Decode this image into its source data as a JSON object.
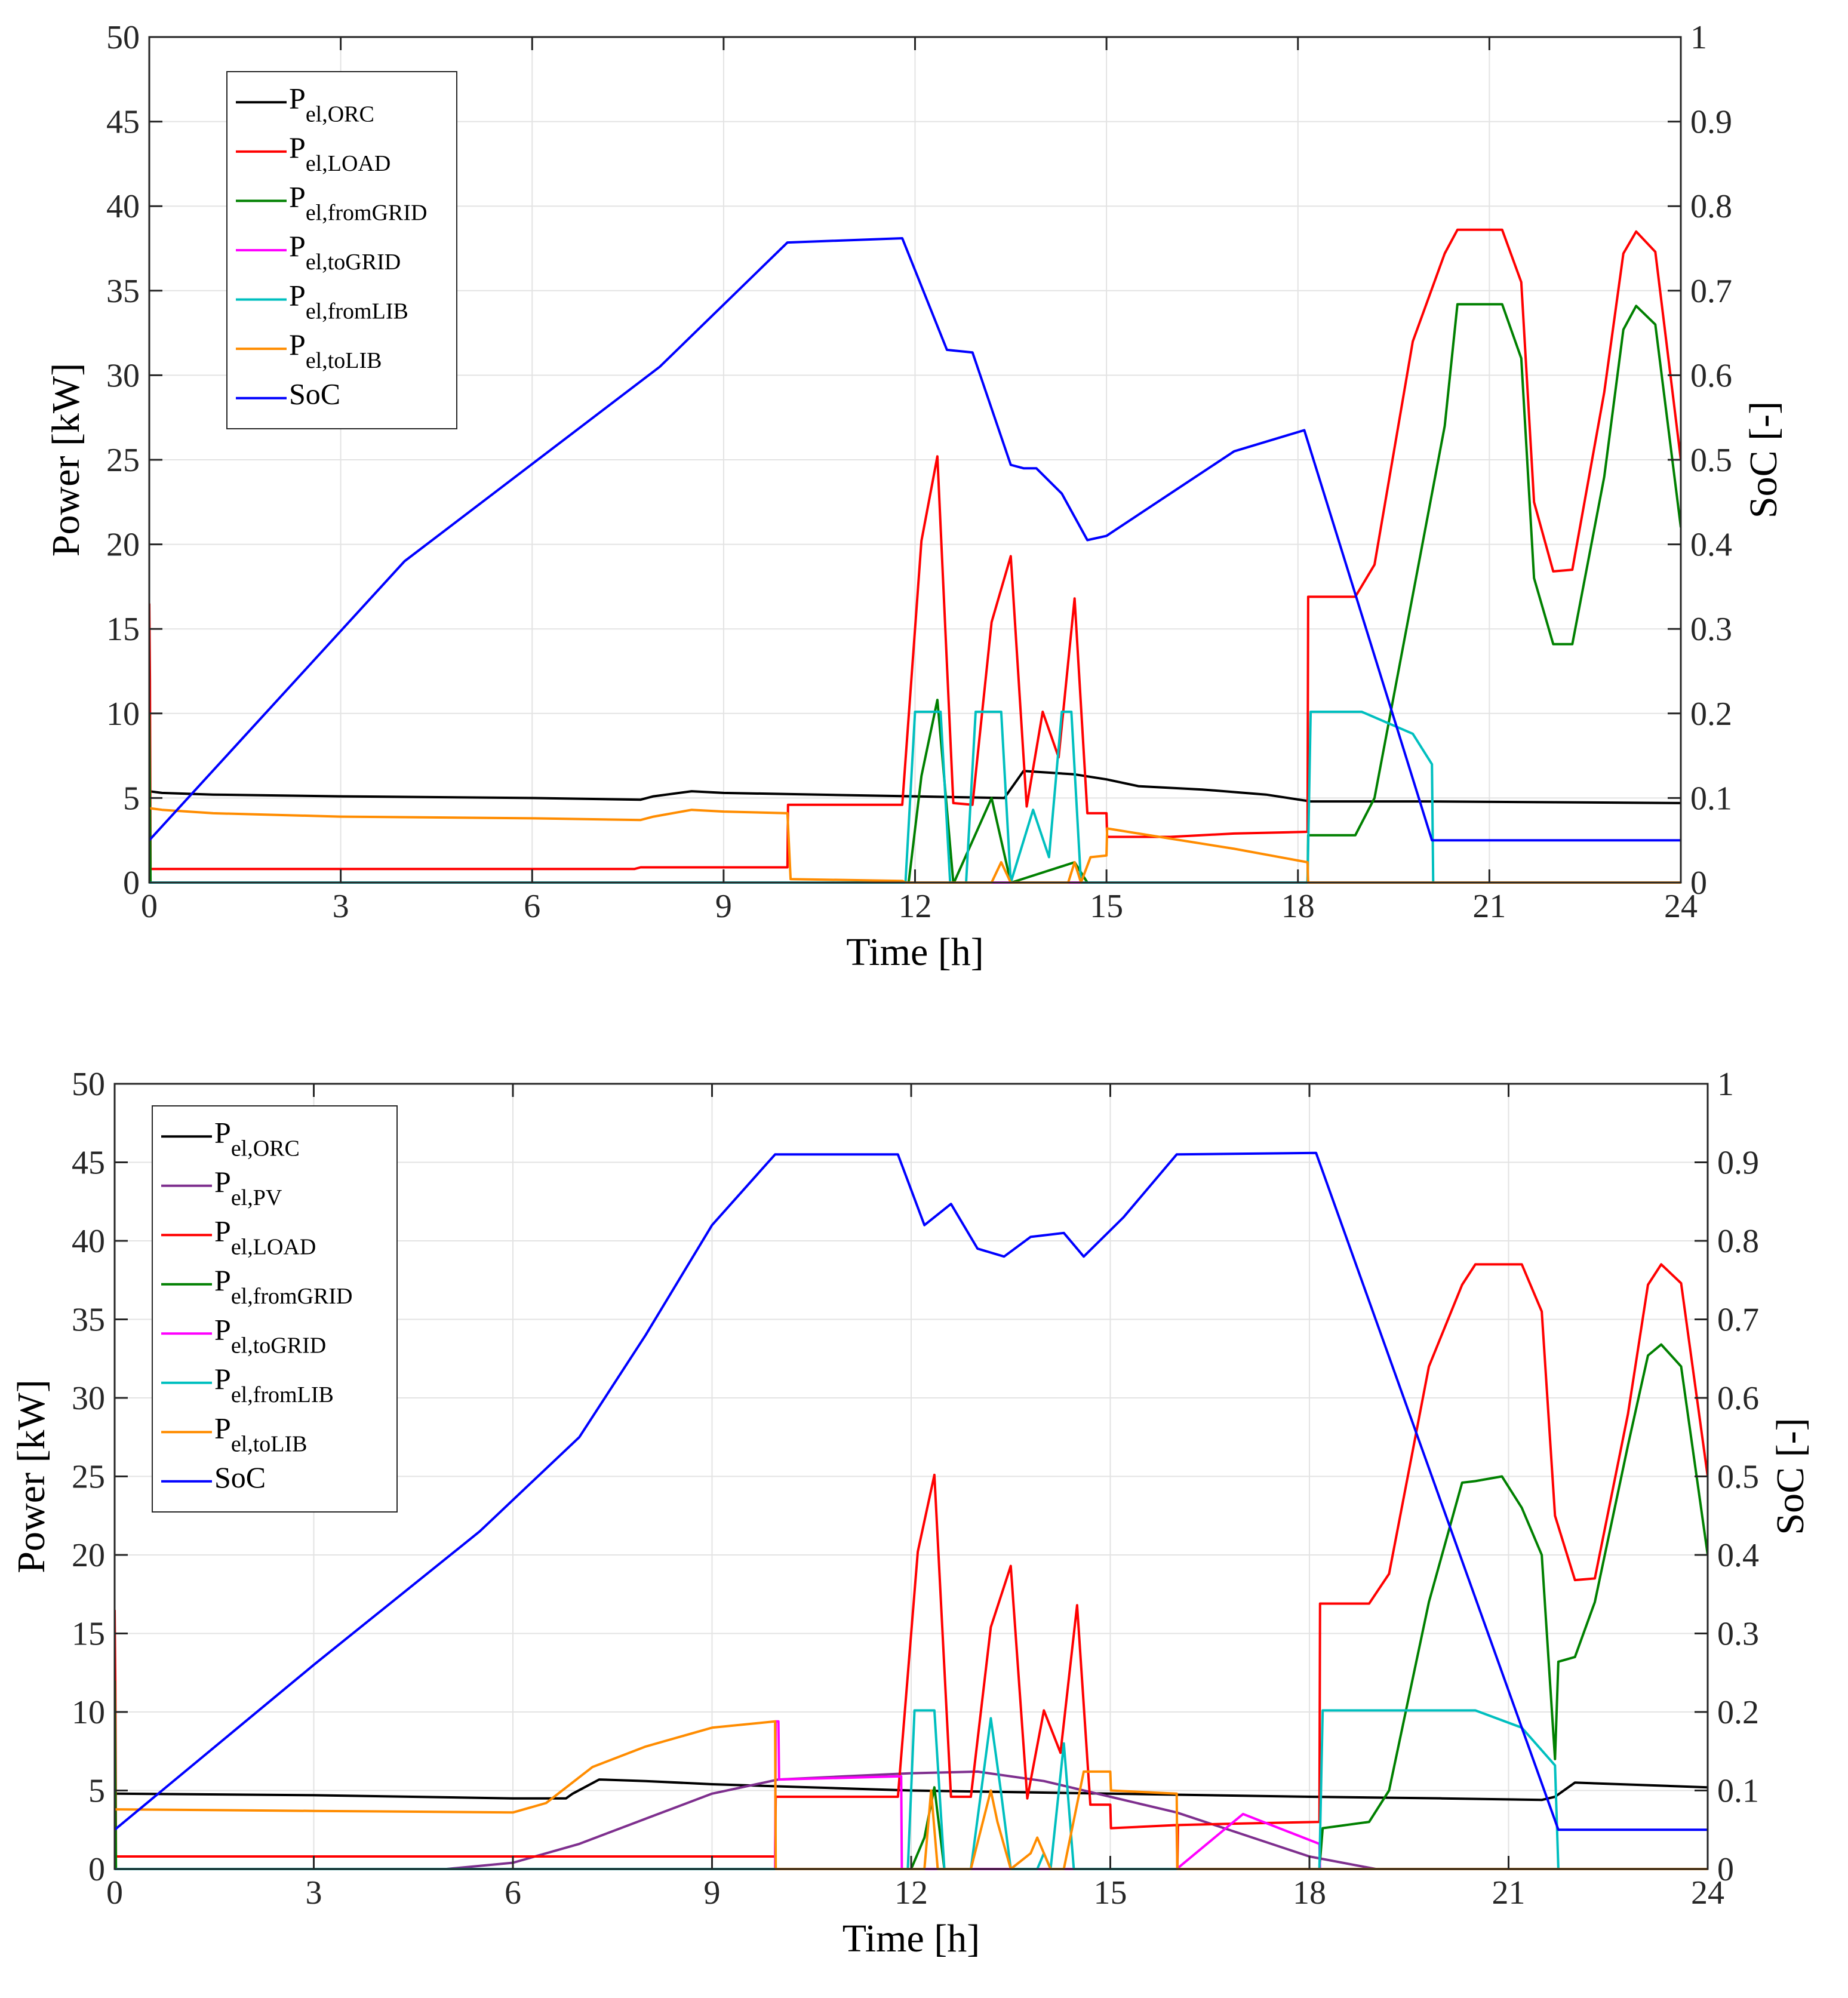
{
  "chart_data": [
    {
      "type": "line",
      "xlabel": "Time [h]",
      "ylabel": "Power [kW]",
      "y2label": "SoC [-]",
      "xlim": [
        0,
        24
      ],
      "ylim": [
        0,
        50
      ],
      "y2lim": [
        0,
        1
      ],
      "xticks": [
        0,
        3,
        6,
        9,
        12,
        15,
        18,
        21,
        24
      ],
      "yticks": [
        0,
        5,
        10,
        15,
        20,
        25,
        30,
        35,
        40,
        45,
        50
      ],
      "y2ticks": [
        0,
        0.1,
        0.2,
        0.3,
        0.4,
        0.5,
        0.6,
        0.7,
        0.8,
        0.9,
        1
      ],
      "grid": true,
      "legend_position": "top-left",
      "series": [
        {
          "name": "ORC",
          "label_main": "P",
          "label_sub": "el,ORC",
          "color": "#000000",
          "axis": "left",
          "x": [
            0,
            0.2,
            1,
            3,
            6,
            7.7,
            7.9,
            8.5,
            9,
            12,
            13.4,
            13.7,
            14.5,
            15,
            15.5,
            16.5,
            17.5,
            18.2,
            20,
            24
          ],
          "y": [
            5.4,
            5.3,
            5.2,
            5.1,
            5.0,
            4.9,
            5.1,
            5.4,
            5.3,
            5.1,
            5.0,
            6.6,
            6.4,
            6.1,
            5.7,
            5.5,
            5.2,
            4.8,
            4.8,
            4.7
          ]
        },
        {
          "name": "LOAD",
          "label_main": "P",
          "label_sub": "el,LOAD",
          "color": "#ff0000",
          "axis": "left",
          "x": [
            0,
            0.01,
            0.02,
            7.6,
            7.7,
            10,
            10.01,
            11.8,
            12.1,
            12.35,
            12.6,
            12.9,
            13.2,
            13.5,
            13.75,
            14.0,
            14.25,
            14.5,
            14.7,
            15.0,
            15.01,
            16.0,
            17.0,
            18.15,
            18.16,
            18.9,
            19.2,
            19.8,
            20.3,
            20.5,
            21.2,
            21.5,
            21.7,
            22.0,
            22.3,
            22.8,
            23.1,
            23.3,
            23.6,
            24
          ],
          "y": [
            16.5,
            12,
            0.8,
            0.8,
            0.9,
            0.9,
            4.6,
            4.6,
            20.2,
            25.2,
            4.7,
            4.6,
            15.4,
            19.3,
            4.5,
            10.1,
            7.4,
            16.8,
            4.1,
            4.1,
            2.7,
            2.7,
            2.9,
            3.0,
            16.9,
            16.9,
            18.8,
            32.0,
            37.2,
            38.6,
            38.6,
            35.5,
            22.5,
            18.4,
            18.5,
            29.0,
            37.2,
            38.5,
            37.3,
            25.0
          ]
        },
        {
          "name": "fromGRID",
          "label_main": "P",
          "label_sub": "el,fromGRID",
          "color": "#008000",
          "axis": "left",
          "x": [
            0,
            0.02,
            11.9,
            12.1,
            12.35,
            12.6,
            12.61,
            13.2,
            13.5,
            13.51,
            14.5,
            14.7,
            18.15,
            18.16,
            18.9,
            19.2,
            19.8,
            20.3,
            20.5,
            21.2,
            21.5,
            21.7,
            22.0,
            22.3,
            22.8,
            23.1,
            23.3,
            23.6,
            24
          ],
          "y": [
            10,
            0,
            0,
            6.3,
            10.8,
            0,
            0,
            5.0,
            0,
            0,
            1.2,
            0,
            0,
            2.8,
            2.8,
            5.0,
            17.0,
            27.0,
            34.2,
            34.2,
            31.0,
            18.0,
            14.1,
            14.1,
            24.0,
            32.7,
            34.1,
            33.0,
            21.0
          ]
        },
        {
          "name": "toGRID",
          "label_main": "P",
          "label_sub": "el,toGRID",
          "color": "#ff00ff",
          "axis": "left",
          "x": [
            0,
            24
          ],
          "y": [
            0,
            0
          ]
        },
        {
          "name": "fromLIB",
          "label_main": "P",
          "label_sub": "el,fromLIB",
          "color": "#00bfbf",
          "axis": "left",
          "x": [
            0,
            11.85,
            12.0,
            12.4,
            12.55,
            12.8,
            12.95,
            13.35,
            13.5,
            13.85,
            14.1,
            14.3,
            14.45,
            14.6,
            14.75,
            18.15,
            18.2,
            19.0,
            19.8,
            20.1,
            20.12,
            24
          ],
          "y": [
            0,
            0,
            10.1,
            10.1,
            0,
            0,
            10.1,
            10.1,
            0,
            4.3,
            1.5,
            10.1,
            10.1,
            0,
            0,
            0,
            10.1,
            10.1,
            8.8,
            7.0,
            0,
            0
          ]
        },
        {
          "name": "toLIB",
          "label_main": "P",
          "label_sub": "el,toLIB",
          "color": "#ff8c00",
          "axis": "left",
          "x": [
            0,
            0.2,
            1,
            3,
            6,
            7.7,
            7.9,
            8.5,
            9,
            10,
            10.05,
            11.8,
            11.85,
            13.2,
            13.35,
            13.5,
            14.4,
            14.5,
            14.6,
            14.75,
            15.0,
            15.01,
            16,
            17,
            18.15,
            18.16,
            24
          ],
          "y": [
            4.4,
            4.3,
            4.1,
            3.9,
            3.8,
            3.7,
            3.9,
            4.3,
            4.2,
            4.1,
            0.2,
            0.1,
            0,
            0,
            1.2,
            0,
            0,
            1.2,
            0,
            1.5,
            1.6,
            3.2,
            2.6,
            2.0,
            1.2,
            0,
            0
          ]
        },
        {
          "name": "SoC",
          "label_main": "SoC",
          "label_sub": "",
          "color": "#0000ff",
          "axis": "right",
          "x": [
            0,
            4,
            8,
            10,
            11.8,
            12.5,
            12.9,
            13.5,
            13.7,
            13.9,
            14.3,
            14.7,
            15,
            16,
            17,
            18.1,
            20.1,
            24
          ],
          "y": [
            0.05,
            0.38,
            0.61,
            0.757,
            0.762,
            0.63,
            0.627,
            0.494,
            0.49,
            0.49,
            0.46,
            0.405,
            0.41,
            0.46,
            0.51,
            0.535,
            0.05,
            0.05
          ]
        }
      ]
    },
    {
      "type": "line",
      "xlabel": "Time [h]",
      "ylabel": "Power [kW]",
      "y2label": "SoC [-]",
      "xlim": [
        0,
        24
      ],
      "ylim": [
        0,
        50
      ],
      "y2lim": [
        0,
        1
      ],
      "xticks": [
        0,
        3,
        6,
        9,
        12,
        15,
        18,
        21,
        24
      ],
      "yticks": [
        0,
        5,
        10,
        15,
        20,
        25,
        30,
        35,
        40,
        45,
        50
      ],
      "y2ticks": [
        0,
        0.1,
        0.2,
        0.3,
        0.4,
        0.5,
        0.6,
        0.7,
        0.8,
        0.9,
        1
      ],
      "grid": true,
      "legend_position": "top-left",
      "series": [
        {
          "name": "ORC",
          "label_main": "P",
          "label_sub": "el,ORC",
          "color": "#000000",
          "axis": "left",
          "x": [
            0,
            3,
            6,
            6.8,
            6.9,
            7.3,
            8,
            9,
            12,
            15,
            18,
            20,
            21.5,
            21.7,
            22,
            24
          ],
          "y": [
            4.8,
            4.7,
            4.5,
            4.5,
            4.8,
            5.7,
            5.6,
            5.4,
            5.0,
            4.8,
            4.6,
            4.5,
            4.4,
            4.6,
            5.5,
            5.2
          ]
        },
        {
          "name": "PV",
          "label_main": "P",
          "label_sub": "el,PV",
          "color": "#7e2f8e",
          "axis": "left",
          "x": [
            0,
            5.0,
            6.0,
            7.0,
            8.0,
            9.0,
            10.0,
            11.0,
            12.0,
            13.0,
            14.0,
            15.0,
            16.0,
            17.0,
            18.0,
            19.0,
            24
          ],
          "y": [
            0,
            0,
            0.4,
            1.6,
            3.2,
            4.8,
            5.7,
            5.9,
            6.1,
            6.2,
            5.6,
            4.6,
            3.6,
            2.2,
            0.8,
            0,
            0
          ]
        },
        {
          "name": "LOAD",
          "label_main": "P",
          "label_sub": "el,LOAD",
          "color": "#ff0000",
          "axis": "left",
          "x": [
            0,
            0.01,
            0.02,
            9.95,
            9.96,
            11.8,
            12.1,
            12.35,
            12.6,
            12.9,
            13.2,
            13.5,
            13.75,
            14.0,
            14.25,
            14.5,
            14.7,
            15.0,
            15.01,
            16.0,
            16.01,
            16.02,
            17.0,
            18.15,
            18.16,
            18.9,
            19.2,
            19.8,
            20.3,
            20.5,
            21.2,
            21.5,
            21.7,
            22.0,
            22.3,
            22.8,
            23.1,
            23.3,
            23.6,
            24
          ],
          "y": [
            16.5,
            12,
            0.8,
            0.8,
            4.6,
            4.6,
            20.2,
            25.1,
            4.6,
            4.6,
            15.4,
            19.3,
            4.5,
            10.1,
            7.4,
            16.8,
            4.1,
            4.1,
            2.6,
            2.8,
            0,
            2.8,
            2.9,
            3.0,
            16.9,
            16.9,
            18.8,
            32.0,
            37.2,
            38.5,
            38.5,
            35.5,
            22.5,
            18.4,
            18.5,
            29.0,
            37.2,
            38.5,
            37.3,
            25.0
          ]
        },
        {
          "name": "fromGRID",
          "label_main": "P",
          "label_sub": "el,fromGRID",
          "color": "#008000",
          "axis": "left",
          "x": [
            0,
            0.02,
            12.0,
            12.2,
            12.35,
            12.5,
            18.15,
            18.2,
            18.9,
            19.2,
            19.8,
            20.3,
            20.5,
            20.9,
            21.2,
            21.5,
            21.7,
            21.75,
            22.0,
            22.3,
            22.8,
            23.1,
            23.3,
            23.6,
            24
          ],
          "y": [
            12,
            0,
            0,
            2.0,
            5.2,
            0,
            0,
            2.6,
            3.0,
            5.0,
            17.0,
            24.6,
            24.7,
            25.0,
            23.0,
            20.0,
            7.0,
            13.2,
            13.5,
            17.0,
            27.0,
            32.7,
            33.4,
            32.0,
            20.0
          ]
        },
        {
          "name": "toGRID",
          "label_main": "P",
          "label_sub": "el,toGRID",
          "color": "#ff00ff",
          "axis": "left",
          "x": [
            0,
            9.95,
            9.96,
            10.0,
            10.01,
            11.85,
            11.86,
            11.95,
            16.0,
            17.0,
            18.15,
            18.16,
            24
          ],
          "y": [
            0,
            0,
            9.4,
            9.4,
            5.7,
            5.9,
            0,
            0,
            0,
            3.5,
            1.6,
            0,
            0
          ]
        },
        {
          "name": "fromLIB",
          "label_main": "P",
          "label_sub": "el,fromLIB",
          "color": "#00bfbf",
          "axis": "left",
          "x": [
            0,
            11.95,
            12.05,
            12.35,
            12.5,
            12.9,
            13.2,
            13.35,
            13.5,
            13.9,
            14.0,
            14.1,
            14.3,
            14.45,
            14.6,
            18.15,
            18.2,
            19.0,
            20.5,
            21.2,
            21.7,
            21.75,
            24
          ],
          "y": [
            0,
            0,
            10.1,
            10.1,
            0,
            0,
            9.6,
            5.0,
            0,
            0,
            1.0,
            0,
            8.0,
            0,
            0,
            0,
            10.1,
            10.1,
            10.1,
            9.0,
            6.6,
            0,
            0
          ]
        },
        {
          "name": "toLIB",
          "label_main": "P",
          "label_sub": "el,toLIB",
          "color": "#ff8c00",
          "axis": "left",
          "x": [
            0,
            0.05,
            3,
            6.0,
            6.5,
            7.2,
            8,
            9,
            9.95,
            9.96,
            12.0,
            12.2,
            12.3,
            12.4,
            12.9,
            13.2,
            13.3,
            13.5,
            13.8,
            13.9,
            14.1,
            14.3,
            14.6,
            15.0,
            15.01,
            16.0,
            16.01,
            18.15,
            18.16,
            24
          ],
          "y": [
            3.8,
            3.8,
            3.7,
            3.6,
            4.2,
            6.5,
            7.8,
            9.0,
            9.4,
            0,
            0,
            0,
            5.0,
            0,
            0,
            5.0,
            3.0,
            0,
            1.0,
            2.0,
            0,
            0,
            6.2,
            6.2,
            5.0,
            4.8,
            0,
            0,
            0,
            0
          ]
        },
        {
          "name": "SoC",
          "label_main": "SoC",
          "label_sub": "",
          "color": "#0000ff",
          "axis": "right",
          "x": [
            0,
            3,
            5.5,
            7,
            8,
            9,
            9.95,
            11.8,
            12.2,
            12.6,
            13.0,
            13.4,
            13.8,
            14.3,
            14.6,
            15.2,
            16,
            18.1,
            21.75,
            24
          ],
          "y": [
            0.05,
            0.26,
            0.43,
            0.55,
            0.68,
            0.82,
            0.91,
            0.91,
            0.82,
            0.847,
            0.79,
            0.78,
            0.805,
            0.81,
            0.78,
            0.83,
            0.91,
            0.912,
            0.05,
            0.05
          ]
        }
      ]
    }
  ]
}
